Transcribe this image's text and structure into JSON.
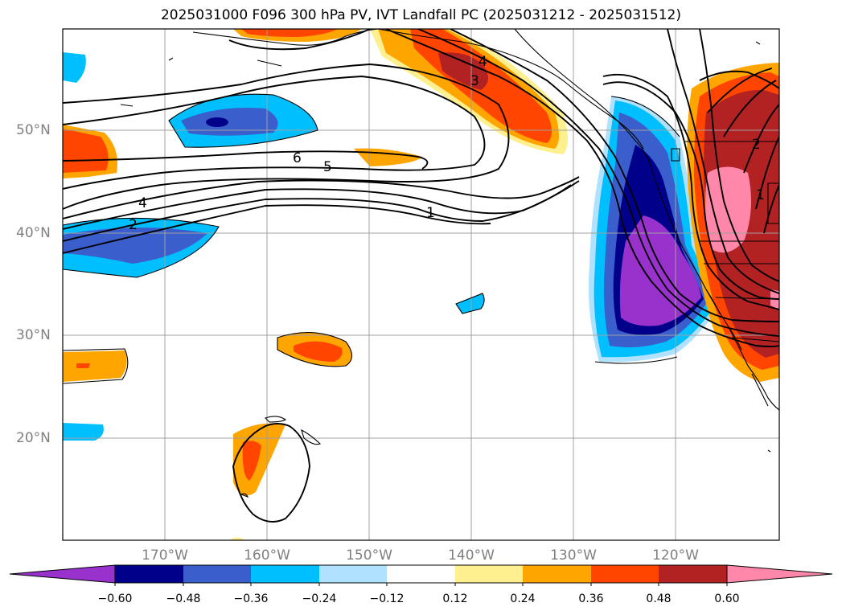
{
  "title": "2025031000 F096 300 hPa PV, IVT Landfall PC (2025031212 - 2025031512)",
  "longitude_labels": [
    "170°W",
    "160°W",
    "150°W",
    "140°W",
    "130°W",
    "120°W"
  ],
  "latitude_labels": [
    "50°N",
    "40°N",
    "30°N",
    "20°N"
  ],
  "colorbar": {
    "tick_labels": [
      "−0.60",
      "−0.48",
      "−0.36",
      "−0.24",
      "−0.12",
      "0.12",
      "0.24",
      "0.36",
      "0.48",
      "0.60"
    ],
    "colors": [
      "#9932cc",
      "#00008b",
      "#3a5fcd",
      "#00bfff",
      "#b0e2ff",
      "#ffffff",
      "#fff08f",
      "#ffa500",
      "#ff4500",
      "#b22222",
      "#ff88aa"
    ]
  },
  "contour_labels": [
    "6",
    "5",
    "4",
    "2",
    "1",
    "4",
    "3",
    "2",
    "1"
  ],
  "colors": {
    "coastline": "#000000",
    "gridline": "#a0a0a0",
    "axis_label": "#808080"
  }
}
